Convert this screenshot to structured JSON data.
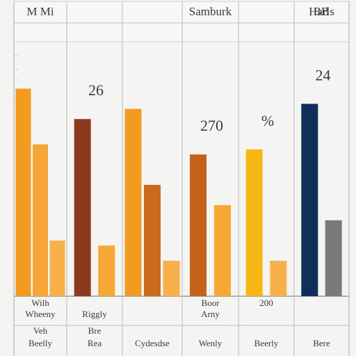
{
  "chart_data": {
    "type": "bar",
    "title": "",
    "xlabel": "",
    "ylabel": "",
    "ylim": [
      0,
      100
    ],
    "grid": true,
    "legend": "none",
    "columns": [
      {
        "header": "M Mi",
        "subheader": "",
        "value_label": "",
        "footer_lines": [
          "Wilh",
          "Wheeny",
          "",
          "Veh",
          "Beelly"
        ],
        "bars": [
          {
            "value": 82,
            "color": "#f39a20"
          },
          {
            "value": 60,
            "color": "#f6a636"
          },
          {
            "value": 22,
            "color": "#f7b04a"
          }
        ]
      },
      {
        "header": "",
        "subheader": "",
        "value_label": "26",
        "footer_lines": [
          "",
          "Riggly",
          "",
          "Bre",
          "Rea"
        ],
        "bars": [
          {
            "value": 70,
            "color": "#8b3a1e"
          },
          {
            "value": 20,
            "color": "#f6a834"
          }
        ]
      },
      {
        "header": "",
        "subheader": "",
        "value_label": "",
        "footer_lines": [
          "",
          "",
          "",
          "",
          "Cydesdse"
        ],
        "bars": [
          {
            "value": 74,
            "color": "#f39a20"
          },
          {
            "value": 44,
            "color": "#cc6a1c"
          },
          {
            "value": 14,
            "color": "#f7b04a"
          }
        ]
      },
      {
        "header": "Samburk",
        "subheader": "",
        "value_label": "270",
        "footer_lines": [
          "Boor",
          "Arny",
          "",
          "",
          "Wenly"
        ],
        "bars": [
          {
            "value": 56,
            "color": "#c4621a"
          },
          {
            "value": 36,
            "color": "#f6a834"
          }
        ]
      },
      {
        "header": "",
        "subheader": "",
        "value_label": "%",
        "footer_lines": [
          "200",
          "",
          "",
          "",
          "Beerly"
        ],
        "bars": [
          {
            "value": 58,
            "color": "#f6b614"
          },
          {
            "value": 14,
            "color": "#f7b04a"
          }
        ]
      },
      {
        "header": "Harls",
        "subheader": "",
        "value_label": "24",
        "footer_lines": [
          "",
          "",
          "",
          "",
          "Bere"
        ],
        "bars": [
          {
            "value": 76,
            "color": "#0f2f5a"
          },
          {
            "value": 30,
            "color": "#7a7a7a"
          }
        ]
      }
    ]
  },
  "header_extras": {
    "col2_header": "",
    "col6_header2": "BB"
  }
}
